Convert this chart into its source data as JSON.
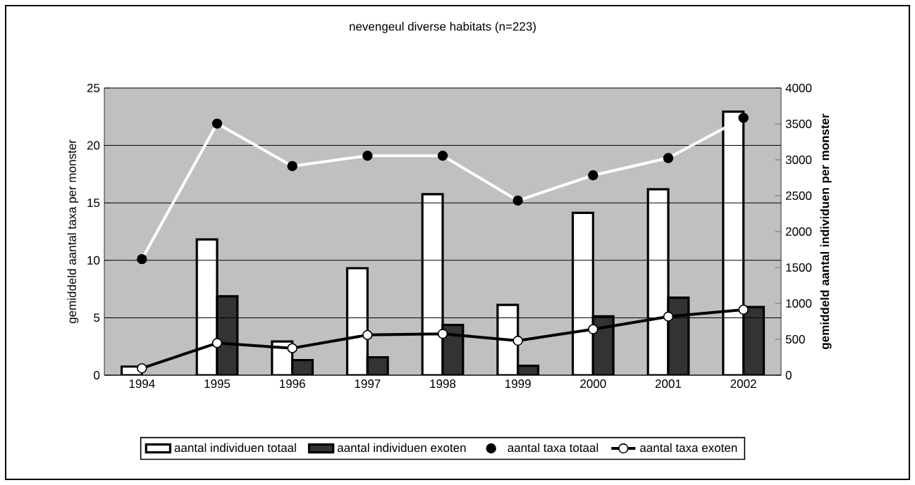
{
  "chart_data": {
    "type": "bar",
    "title": "nevengeul diverse habitats (n=223)",
    "ylabel": "gemiddeld aantal taxa per monster",
    "y2label": "gemiddeld aantal individuen per monster",
    "categories": [
      "1994",
      "1995",
      "1996",
      "1997",
      "1998",
      "1999",
      "2000",
      "2001",
      "2002"
    ],
    "series": [
      {
        "name": "aantal individuen totaal",
        "axis": "y2",
        "color": "#ffffff",
        "values": [
          120,
          1890,
          470,
          1490,
          2520,
          980,
          2260,
          2590,
          3670
        ]
      },
      {
        "name": "aantal individuen exoten",
        "axis": "y2",
        "color": "#333333",
        "values": [
          null,
          1100,
          210,
          250,
          700,
          130,
          820,
          1080,
          950
        ]
      },
      {
        "name": "aantal taxa totaal",
        "type": "line",
        "color": "#ffffff",
        "values": [
          10.1,
          21.9,
          18.2,
          19.1,
          19.1,
          15.2,
          17.4,
          18.9,
          22.4
        ]
      },
      {
        "name": "aantal taxa exoten",
        "type": "line",
        "color": "#000000",
        "values": [
          0.6,
          2.8,
          2.35,
          3.5,
          3.6,
          3.0,
          4.0,
          5.1,
          5.7
        ]
      }
    ],
    "ylim": [
      0,
      25
    ],
    "yticks": [
      0,
      5,
      10,
      15,
      20,
      25
    ],
    "y2lim": [
      0,
      4000
    ],
    "y2ticks": [
      0,
      500,
      1000,
      1500,
      2000,
      2500,
      3000,
      3500,
      4000
    ],
    "grid": "y",
    "legend": "bottom",
    "marker": "circle",
    "line_style": "solid"
  }
}
